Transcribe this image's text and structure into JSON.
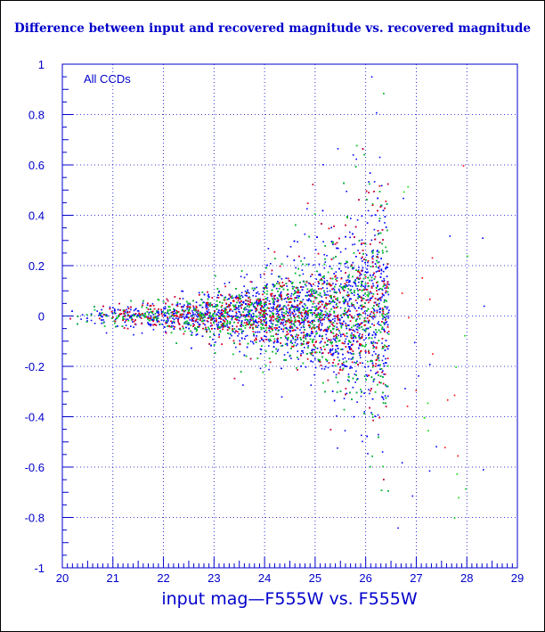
{
  "chart_data": {
    "type": "scatter",
    "title": "Difference between input and recovered magnitude vs. recovered magnitude",
    "xlabel": "input mag—F555W vs. F555W",
    "ylabel": "",
    "annotation": "All CCDs",
    "xlim": [
      20,
      29
    ],
    "ylim": [
      -1,
      1
    ],
    "x_ticks": [
      "20",
      "21",
      "22",
      "23",
      "24",
      "25",
      "26",
      "27",
      "28",
      "29"
    ],
    "y_ticks": [
      "1",
      "0.8",
      "0.6",
      "0.4",
      "0.2",
      "0",
      "-0.2",
      "-0.4",
      "-0.6",
      "-0.8",
      "-1"
    ],
    "grid": true,
    "series": [
      {
        "color": "#0000ff",
        "envelope": [
          [
            20.0,
            0.03
          ],
          [
            21.0,
            0.04
          ],
          [
            22.0,
            0.06
          ],
          [
            23.0,
            0.1
          ],
          [
            24.0,
            0.15
          ],
          [
            25.0,
            0.22
          ],
          [
            25.5,
            0.3
          ],
          [
            26.0,
            0.38
          ],
          [
            26.45,
            0.45
          ]
        ],
        "cutoff": 26.45
      },
      {
        "color": "#00dd00",
        "envelope": [
          [
            20.0,
            0.03
          ],
          [
            21.0,
            0.04
          ],
          [
            22.0,
            0.06
          ],
          [
            23.0,
            0.1
          ],
          [
            24.0,
            0.15
          ],
          [
            25.0,
            0.22
          ],
          [
            25.5,
            0.3
          ],
          [
            26.0,
            0.38
          ],
          [
            26.45,
            0.45
          ]
        ],
        "cutoff": 26.45
      },
      {
        "color": "#ff0000",
        "envelope": [
          [
            20.0,
            0.03
          ],
          [
            21.0,
            0.04
          ],
          [
            22.0,
            0.06
          ],
          [
            23.0,
            0.1
          ],
          [
            24.0,
            0.15
          ],
          [
            25.0,
            0.22
          ],
          [
            25.5,
            0.3
          ],
          [
            26.0,
            0.38
          ],
          [
            26.45,
            0.45
          ]
        ],
        "cutoff": 26.45
      }
    ]
  },
  "colors": {
    "axis": "#0000cc",
    "grid": "#0000cc",
    "background": "#ffffff",
    "border": "#000000"
  }
}
